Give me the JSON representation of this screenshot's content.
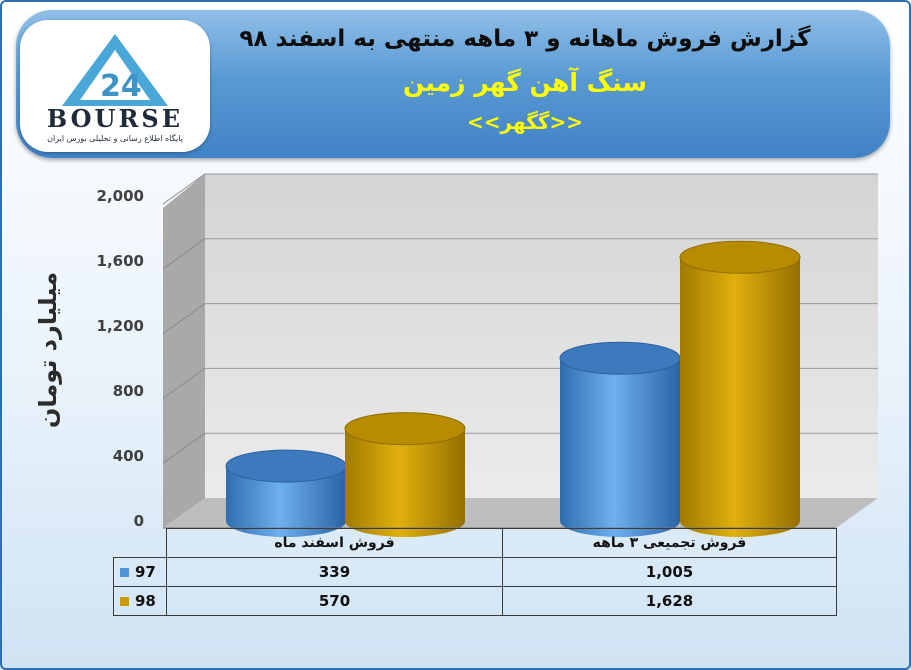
{
  "header": {
    "title": "گزارش فروش ماهانه و ۳ ماهه منتهی به اسفند ۹۸",
    "subtitle": "سنگ آهن گهر زمین",
    "ticker": "<<گگهر>>"
  },
  "logo": {
    "word": "BOURSE",
    "number": "24",
    "tagline": "پایگاه اطلاع رسانی و تحلیلی بورس ایران"
  },
  "colors": {
    "series97": "#4f93d8",
    "series98": "#c99a05",
    "banner": "#4a8ccc",
    "title_yellow": "#ffff00"
  },
  "chart_data": {
    "type": "bar",
    "title": "گزارش فروش ماهانه و ۳ ماهه منتهی به اسفند ۹۸",
    "subtitle": "سنگ آهن گهر زمین",
    "ylabel": "میلیارد تومان",
    "xlabel": "",
    "ylim": [
      0,
      2000
    ],
    "yticks": [
      "0",
      "400",
      "800",
      "1,200",
      "1,600",
      "2,000"
    ],
    "categories": [
      "فروش اسفند  ماه",
      "فروش تجمیعی ۳ ماهه"
    ],
    "series": [
      {
        "name": "97",
        "values": [
          339,
          1005
        ],
        "labels": [
          "339",
          "1,005"
        ]
      },
      {
        "name": "98",
        "values": [
          570,
          1628
        ],
        "labels": [
          "570",
          "1,628"
        ]
      }
    ],
    "grid": true,
    "legend": "data-table-left"
  }
}
